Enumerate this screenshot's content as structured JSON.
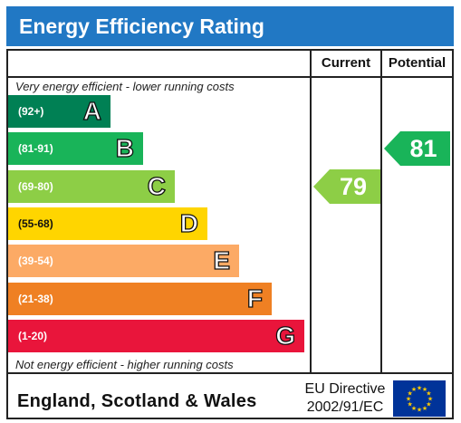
{
  "title": "Energy Efficiency Rating",
  "headers": {
    "current": "Current",
    "potential": "Potential"
  },
  "notes": {
    "top": "Very energy efficient - lower running costs",
    "bottom": "Not energy efficient - higher running costs"
  },
  "chart_data": {
    "type": "bar",
    "bands": [
      {
        "range": "(92+)",
        "letter": "A",
        "color": "#008054"
      },
      {
        "range": "(81-91)",
        "letter": "B",
        "color": "#19b459"
      },
      {
        "range": "(69-80)",
        "letter": "C",
        "color": "#8dce46"
      },
      {
        "range": "(55-68)",
        "letter": "D",
        "color": "#ffd500"
      },
      {
        "range": "(39-54)",
        "letter": "E",
        "color": "#fcaa65"
      },
      {
        "range": "(21-38)",
        "letter": "F",
        "color": "#ef8023"
      },
      {
        "range": "(1-20)",
        "letter": "G",
        "color": "#e9153b"
      }
    ],
    "current": {
      "value": 79,
      "band": "C",
      "color": "#8dce46"
    },
    "potential": {
      "value": 81,
      "band": "B",
      "color": "#19b459"
    }
  },
  "footer": {
    "region": "England, Scotland & Wales",
    "directive_line1": "EU Directive",
    "directive_line2": "2002/91/EC"
  },
  "colors": {
    "title_bar": "#2178c4",
    "eu_flag": "#003399",
    "eu_stars": "#ffcc00"
  }
}
